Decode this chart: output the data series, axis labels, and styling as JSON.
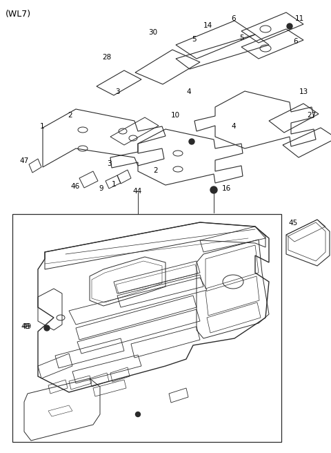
{
  "bg_color": "#ffffff",
  "line_color": "#2a2a2a",
  "text_color": "#000000",
  "fig_width": 4.8,
  "fig_height": 6.56,
  "dpi": 100
}
